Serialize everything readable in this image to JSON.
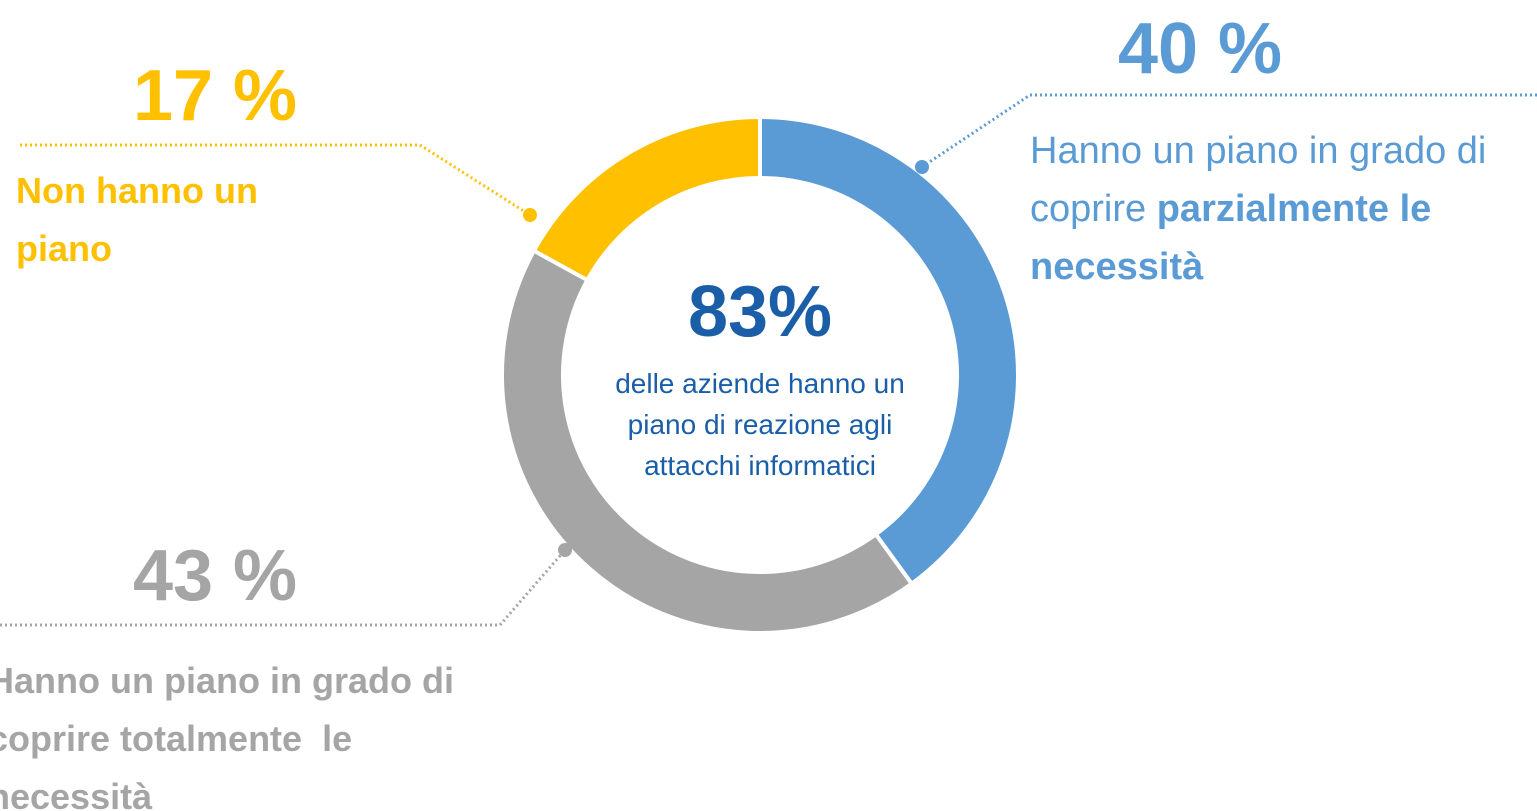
{
  "chart_data": {
    "type": "pie",
    "donut": true,
    "categories": [
      [
        {
          "text": "Hanno un piano in grado di coprire ",
          "bold": false
        },
        {
          "text": "parzialmente le necessità",
          "bold": true
        }
      ],
      [
        {
          "text": "Hanno un piano in grado di coprire totalmente  le necessità",
          "bold": true
        }
      ],
      [
        {
          "text": "Non hanno un piano",
          "bold": true
        }
      ]
    ],
    "values": [
      40,
      43,
      17
    ],
    "value_labels": [
      "40 %",
      "43 %",
      "17 %"
    ],
    "colors": [
      "#5b9bd5",
      "#a5a5a5",
      "#ffc000"
    ],
    "center_value": "83%",
    "center_text": [
      "delle aziende hanno un",
      "piano di reazione agli",
      "attacchi informatici"
    ]
  }
}
